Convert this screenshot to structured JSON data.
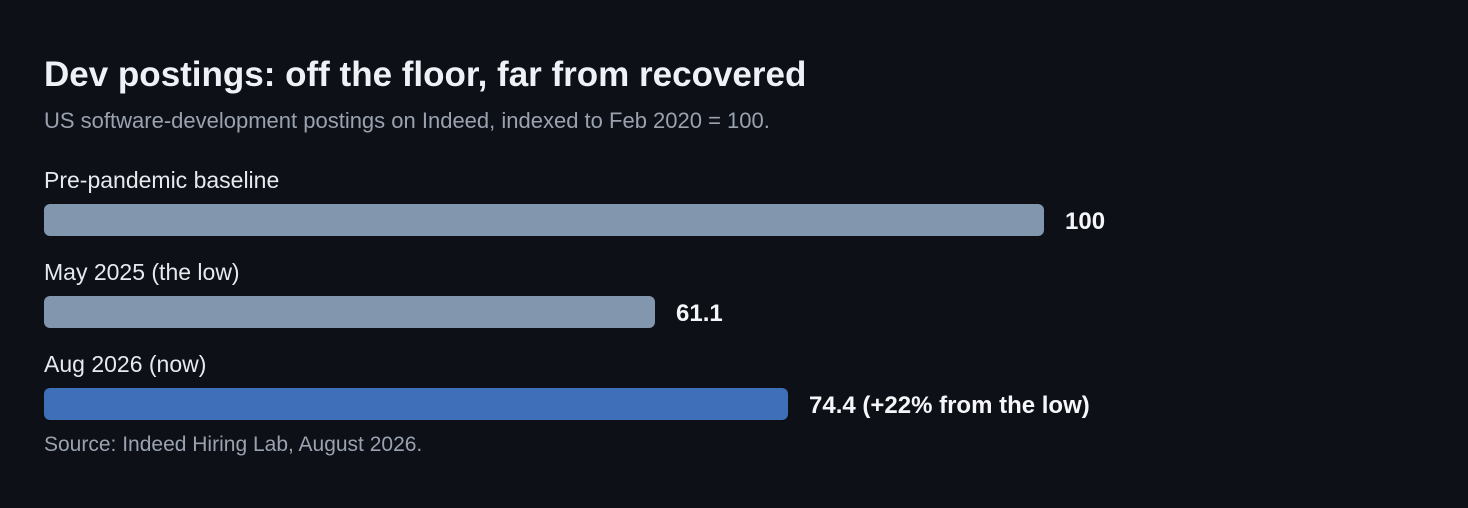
{
  "chart_data": {
    "type": "bar",
    "orientation": "horizontal",
    "title": "Dev postings: off the floor, far from recovered",
    "subtitle": "US software-development postings on Indeed, indexed to Feb 2020 = 100.",
    "categories": [
      "Pre-pandemic baseline",
      "May 2025 (the low)",
      "Aug 2026 (now)"
    ],
    "values": [
      100,
      61.1,
      74.4
    ],
    "value_labels": [
      "100",
      "61.1",
      "74.4 (+22% from the low)"
    ],
    "bar_colors": [
      "#8296ae",
      "#8296ae",
      "#3f6fb8"
    ],
    "xlim": [
      0,
      100
    ],
    "grid": false,
    "legend": "none",
    "source": "Source: Indeed Hiring Lab, August 2026."
  }
}
